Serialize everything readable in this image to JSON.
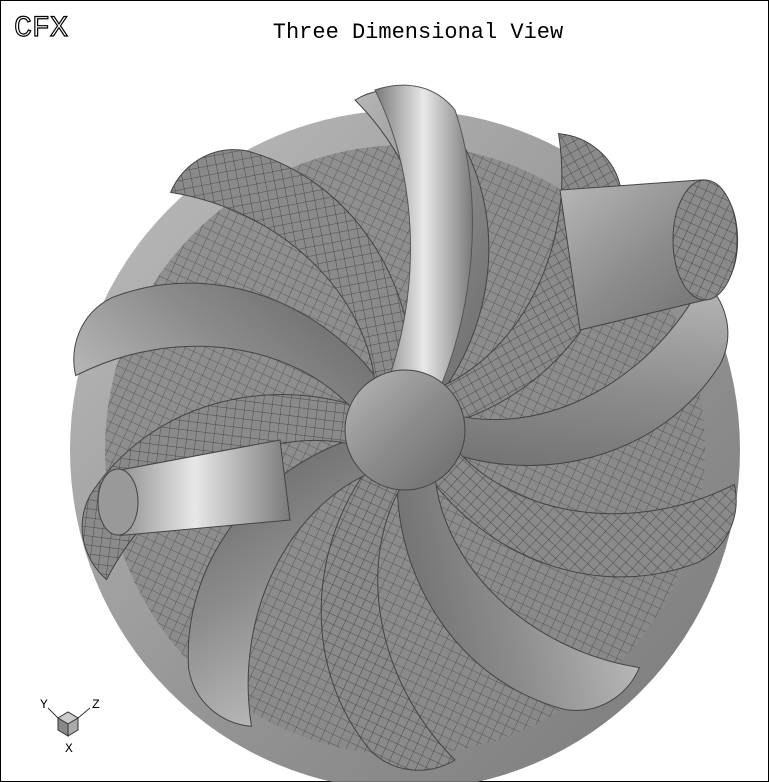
{
  "header": {
    "logo": "CFX",
    "title": "Three Dimensional View"
  },
  "axes": {
    "y": "Y",
    "z": "Z",
    "x": "X"
  }
}
